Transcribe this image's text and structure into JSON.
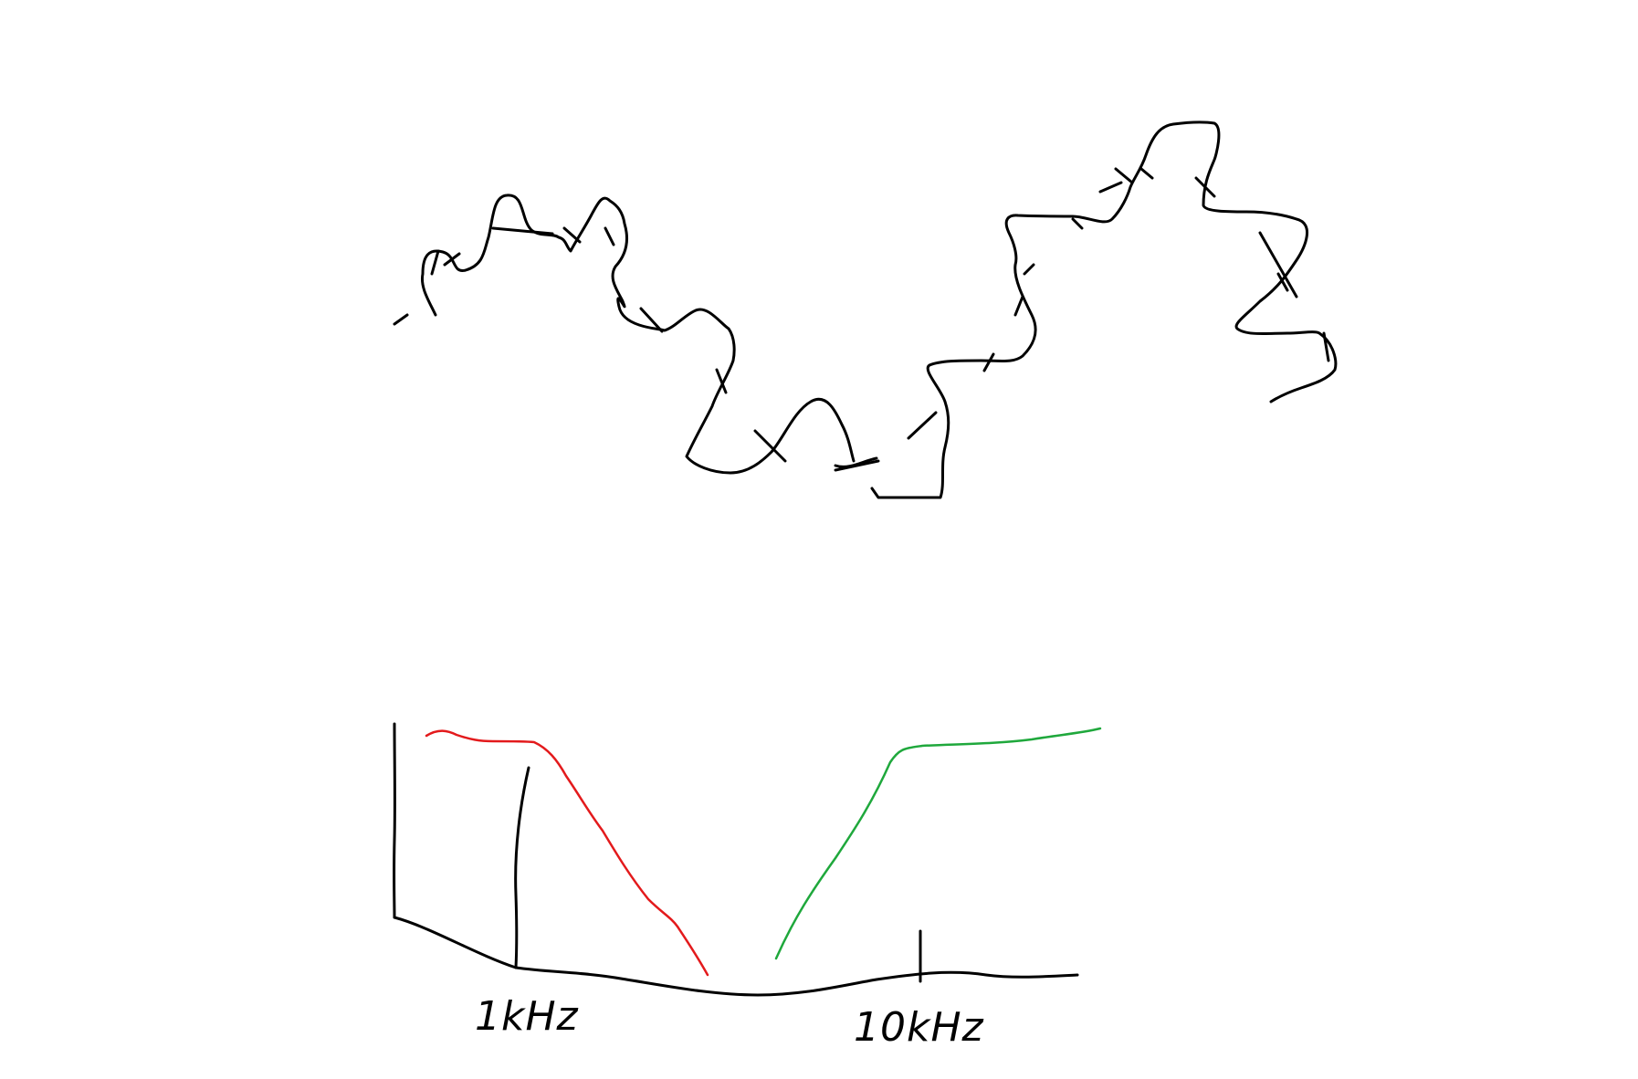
{
  "diagram": {
    "tick_labels": [
      "1kHz",
      "10kHz"
    ],
    "colors": {
      "ink": "#000000",
      "lowpass": "#e31a1c",
      "highpass": "#1fa83c",
      "background": "#ffffff"
    }
  }
}
